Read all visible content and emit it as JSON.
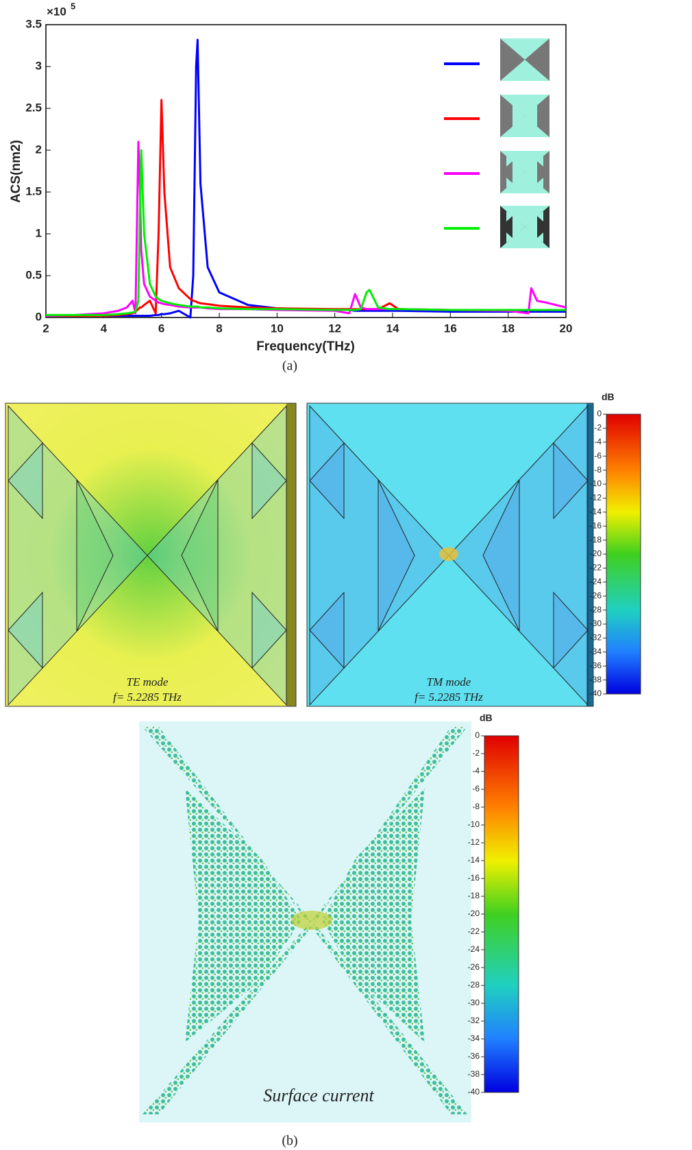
{
  "chart_data": {
    "type": "line",
    "x_label": "Frequency(THz)",
    "y_label": "ACS(nm2)",
    "y_multiplier": {
      "base": "×10",
      "exponent": "5"
    },
    "x": [
      2,
      3,
      4,
      4.5,
      4.8,
      5,
      5.1,
      5.2,
      5.25,
      5.3,
      5.4,
      5.6,
      5.8,
      5.9,
      6,
      6.1,
      6.3,
      6.6,
      7,
      7.1,
      7.2,
      7.25,
      7.35,
      7.6,
      8,
      9,
      10,
      12,
      12.5,
      12.7,
      12.9,
      13.1,
      13.2,
      13.5,
      13.9,
      14.2,
      16,
      18,
      18.7,
      18.8,
      19,
      19.3,
      20
    ],
    "series": [
      {
        "color": "#0000ff",
        "values": [
          0.02,
          0.02,
          0.02,
          0.02,
          0.02,
          0.02,
          0.02,
          0.02,
          0.02,
          0.02,
          0.02,
          0.02,
          0.03,
          0.03,
          0.04,
          0.04,
          0.05,
          0.08,
          0.0,
          0.5,
          3.0,
          3.32,
          1.6,
          0.6,
          0.3,
          0.15,
          0.11,
          0.09,
          0.09,
          0.08,
          0.08,
          0.08,
          0.08,
          0.08,
          0.08,
          0.08,
          0.07,
          0.07,
          0.07,
          0.07,
          0.07,
          0.07,
          0.07
        ]
      },
      {
        "color": "#ff0000",
        "values": [
          0.02,
          0.02,
          0.02,
          0.03,
          0.04,
          0.05,
          0.07,
          0.1,
          0.12,
          0.12,
          0.15,
          0.2,
          0.05,
          1.0,
          2.6,
          1.5,
          0.6,
          0.35,
          0.22,
          0.2,
          0.19,
          0.18,
          0.17,
          0.16,
          0.14,
          0.12,
          0.11,
          0.1,
          0.1,
          0.1,
          0.1,
          0.1,
          0.1,
          0.1,
          0.17,
          0.1,
          0.09,
          0.09,
          0.09,
          0.09,
          0.09,
          0.09,
          0.09
        ]
      },
      {
        "color": "#ff00ff",
        "values": [
          0.02,
          0.03,
          0.05,
          0.08,
          0.12,
          0.2,
          0.05,
          2.1,
          1.6,
          0.8,
          0.4,
          0.25,
          0.2,
          0.18,
          0.17,
          0.16,
          0.15,
          0.13,
          0.12,
          0.12,
          0.12,
          0.12,
          0.12,
          0.11,
          0.1,
          0.1,
          0.09,
          0.08,
          0.05,
          0.28,
          0.12,
          0.1,
          0.1,
          0.1,
          0.1,
          0.1,
          0.09,
          0.08,
          0.05,
          0.35,
          0.2,
          0.18,
          0.12
        ]
      },
      {
        "color": "#00ee00",
        "values": [
          0.03,
          0.03,
          0.03,
          0.04,
          0.05,
          0.06,
          0.07,
          0.2,
          1.2,
          2.0,
          1.0,
          0.4,
          0.25,
          0.22,
          0.2,
          0.19,
          0.17,
          0.15,
          0.13,
          0.13,
          0.13,
          0.13,
          0.12,
          0.12,
          0.11,
          0.1,
          0.1,
          0.09,
          0.09,
          0.09,
          0.1,
          0.3,
          0.33,
          0.12,
          0.1,
          0.1,
          0.09,
          0.09,
          0.09,
          0.09,
          0.09,
          0.09,
          0.09
        ]
      }
    ],
    "xlim": [
      2,
      20
    ],
    "xticks": [
      2,
      4,
      6,
      8,
      10,
      12,
      14,
      16,
      18,
      20
    ],
    "ylim": [
      0,
      3.5
    ],
    "yticks": [
      0,
      0.5,
      1,
      1.5,
      2,
      2.5,
      3,
      3.5
    ]
  },
  "captions": {
    "a": "(a)",
    "b": "(b)"
  },
  "panels": {
    "te": {
      "mode": "TE mode",
      "freq": "f= 5.2285 THz"
    },
    "tm": {
      "mode": "TM mode",
      "freq": "f= 5.2285 THz"
    },
    "current": {
      "label": "Surface current"
    }
  },
  "colorbars": [
    {
      "unit": "dB",
      "range": [
        0,
        -40
      ],
      "ticks": [
        0,
        -2,
        -4,
        -6,
        -8,
        -10,
        -12,
        -14,
        -16,
        -18,
        -20,
        -22,
        -24,
        -26,
        -28,
        -30,
        -32,
        -34,
        -36,
        -38,
        -40
      ]
    },
    {
      "unit": "dB",
      "range": [
        0,
        -40
      ],
      "ticks": [
        0,
        -2,
        -4,
        -6,
        -8,
        -10,
        -12,
        -14,
        -16,
        -18,
        -20,
        -22,
        -24,
        -26,
        -28,
        -30,
        -32,
        -34,
        -36,
        -38,
        -40
      ]
    }
  ]
}
